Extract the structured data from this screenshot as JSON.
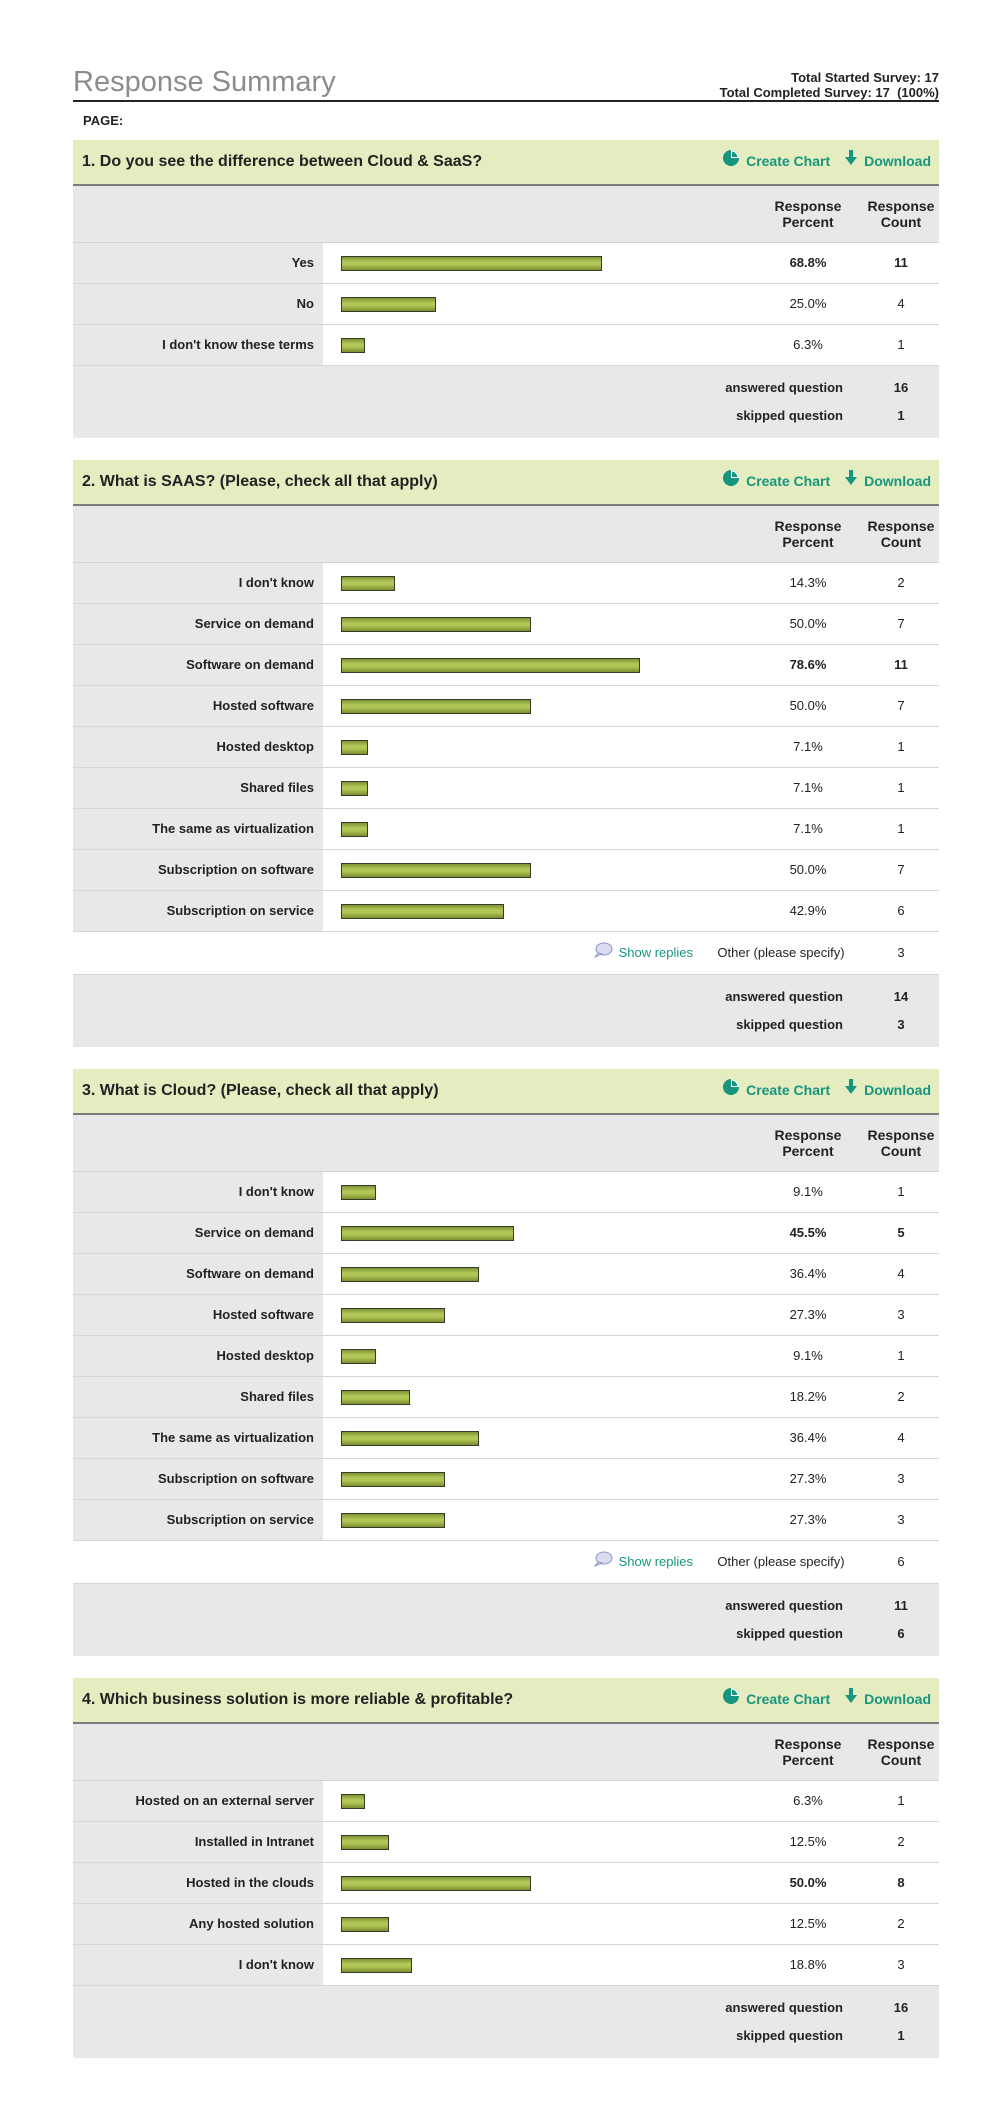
{
  "header": {
    "title": "Response Summary",
    "total_started": "Total Started Survey: 17",
    "total_completed": "Total Completed Survey: 17  (100%)",
    "page_label": "PAGE:"
  },
  "labels": {
    "create_chart": "Create Chart",
    "download": "Download",
    "response_percent_1": "Response",
    "response_percent_2": "Percent",
    "response_count_1": "Response",
    "response_count_2": "Count",
    "answered": "answered question",
    "skipped": "skipped question",
    "show_replies": "Show replies",
    "other_specify": "Other (please specify)"
  },
  "colors": {
    "accent": "#17957e",
    "header_bg": "#e4ecc0",
    "bar": "#aec352"
  },
  "questions": [
    {
      "title": "1. Do you see the difference between Cloud & SaaS?",
      "rows": [
        {
          "label": "Yes",
          "percent": "68.8%",
          "value": 68.8,
          "count": "11",
          "bold": true
        },
        {
          "label": "No",
          "percent": "25.0%",
          "value": 25.0,
          "count": "4",
          "bold": false
        },
        {
          "label": "I don't know these terms",
          "percent": "6.3%",
          "value": 6.3,
          "count": "1",
          "bold": false
        }
      ],
      "other": null,
      "answered": "16",
      "skipped": "1"
    },
    {
      "title": "2. What is SAAS? (Please, check all that apply)",
      "rows": [
        {
          "label": "I don't know",
          "percent": "14.3%",
          "value": 14.3,
          "count": "2",
          "bold": false
        },
        {
          "label": "Service on demand",
          "percent": "50.0%",
          "value": 50.0,
          "count": "7",
          "bold": false
        },
        {
          "label": "Software on demand",
          "percent": "78.6%",
          "value": 78.6,
          "count": "11",
          "bold": true
        },
        {
          "label": "Hosted software",
          "percent": "50.0%",
          "value": 50.0,
          "count": "7",
          "bold": false
        },
        {
          "label": "Hosted desktop",
          "percent": "7.1%",
          "value": 7.1,
          "count": "1",
          "bold": false
        },
        {
          "label": "Shared files",
          "percent": "7.1%",
          "value": 7.1,
          "count": "1",
          "bold": false
        },
        {
          "label": "The same as virtualization",
          "percent": "7.1%",
          "value": 7.1,
          "count": "1",
          "bold": false
        },
        {
          "label": "Subscription on software",
          "percent": "50.0%",
          "value": 50.0,
          "count": "7",
          "bold": false
        },
        {
          "label": "Subscription on service",
          "percent": "42.9%",
          "value": 42.9,
          "count": "6",
          "bold": false
        }
      ],
      "other": {
        "count": "3"
      },
      "answered": "14",
      "skipped": "3"
    },
    {
      "title": "3. What is Cloud? (Please, check all that apply)",
      "rows": [
        {
          "label": "I don't know",
          "percent": "9.1%",
          "value": 9.1,
          "count": "1",
          "bold": false
        },
        {
          "label": "Service on demand",
          "percent": "45.5%",
          "value": 45.5,
          "count": "5",
          "bold": true
        },
        {
          "label": "Software on demand",
          "percent": "36.4%",
          "value": 36.4,
          "count": "4",
          "bold": false
        },
        {
          "label": "Hosted software",
          "percent": "27.3%",
          "value": 27.3,
          "count": "3",
          "bold": false
        },
        {
          "label": "Hosted desktop",
          "percent": "9.1%",
          "value": 9.1,
          "count": "1",
          "bold": false
        },
        {
          "label": "Shared files",
          "percent": "18.2%",
          "value": 18.2,
          "count": "2",
          "bold": false
        },
        {
          "label": "The same as virtualization",
          "percent": "36.4%",
          "value": 36.4,
          "count": "4",
          "bold": false
        },
        {
          "label": "Subscription on software",
          "percent": "27.3%",
          "value": 27.3,
          "count": "3",
          "bold": false
        },
        {
          "label": "Subscription on service",
          "percent": "27.3%",
          "value": 27.3,
          "count": "3",
          "bold": false
        }
      ],
      "other": {
        "count": "6"
      },
      "answered": "11",
      "skipped": "6"
    },
    {
      "title": "4. Which business solution is more reliable & profitable?",
      "rows": [
        {
          "label": "Hosted on an external server",
          "percent": "6.3%",
          "value": 6.3,
          "count": "1",
          "bold": false
        },
        {
          "label": "Installed in Intranet",
          "percent": "12.5%",
          "value": 12.5,
          "count": "2",
          "bold": false
        },
        {
          "label": "Hosted in the clouds",
          "percent": "50.0%",
          "value": 50.0,
          "count": "8",
          "bold": true
        },
        {
          "label": "Any hosted solution",
          "percent": "12.5%",
          "value": 12.5,
          "count": "2",
          "bold": false
        },
        {
          "label": "I don't know",
          "percent": "18.8%",
          "value": 18.8,
          "count": "3",
          "bold": false
        }
      ],
      "other": null,
      "answered": "16",
      "skipped": "1"
    }
  ]
}
